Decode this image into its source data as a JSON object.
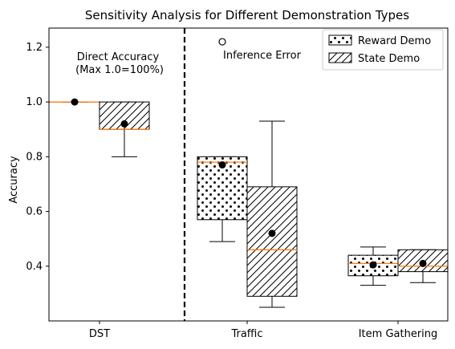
{
  "chart_data": {
    "type": "box",
    "title": "Sensitivity Analysis for Different Demonstration Types",
    "xlabel": "",
    "ylabel": "Accuracy",
    "ylim": [
      0.2,
      1.27
    ],
    "yticks": [
      0.4,
      0.6,
      0.8,
      1.0,
      1.2
    ],
    "yticklabels": [
      "0.4",
      "0.6",
      "0.8",
      "1.0",
      "1.2"
    ],
    "categories": [
      "DST",
      "Traffic",
      "Item Gathering"
    ],
    "grid": false,
    "legend_position": "top-right",
    "colors": {
      "median": "#ff7f0e",
      "edge": "#000000",
      "face": "#ffffff"
    },
    "series": [
      {
        "name": "Reward Demo",
        "hatch": "dots",
        "boxes": [
          {
            "category": "DST",
            "whislo": 1.0,
            "q1": 1.0,
            "med": 1.0,
            "q3": 1.0,
            "whishi": 1.0,
            "mean": 1.0
          },
          {
            "category": "Traffic",
            "whislo": 0.49,
            "q1": 0.57,
            "med": 0.78,
            "q3": 0.8,
            "whishi": 0.8,
            "mean": 0.77
          },
          {
            "category": "Item Gathering",
            "whislo": 0.33,
            "q1": 0.365,
            "med": 0.41,
            "q3": 0.44,
            "whishi": 0.47,
            "mean": 0.405
          }
        ]
      },
      {
        "name": "State Demo",
        "hatch": "diagonal",
        "boxes": [
          {
            "category": "DST",
            "whislo": 0.8,
            "q1": 0.9,
            "med": 0.9,
            "q3": 1.0,
            "whishi": 1.0,
            "mean": 0.92
          },
          {
            "category": "Traffic",
            "whislo": 0.25,
            "q1": 0.29,
            "med": 0.46,
            "q3": 0.69,
            "whishi": 0.93,
            "mean": 0.52
          },
          {
            "category": "Item Gathering",
            "whislo": 0.34,
            "q1": 0.38,
            "med": 0.4,
            "q3": 0.46,
            "whishi": 0.46,
            "mean": 0.41
          }
        ]
      }
    ],
    "annotations": {
      "direct_accuracy_line1": "Direct Accuracy",
      "direct_accuracy_line2": " (Max 1.0=100%)",
      "inference_error": "Inference Error",
      "inference_error_marker": {
        "category": "Traffic",
        "series": "Reward Demo",
        "y": 1.22
      }
    },
    "divider": {
      "style": "dashed",
      "between": [
        "DST",
        "Traffic"
      ]
    }
  }
}
